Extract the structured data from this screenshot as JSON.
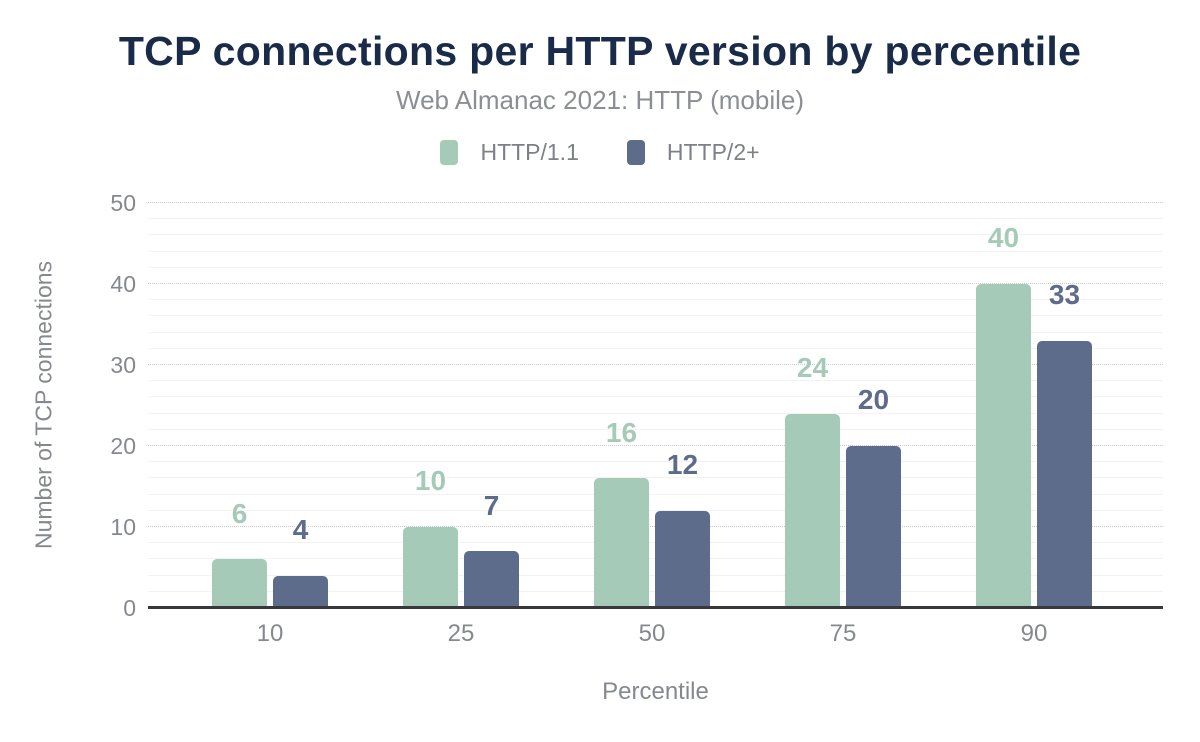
{
  "chart_data": {
    "type": "bar",
    "title": "TCP connections per HTTP version by percentile",
    "subtitle": "Web Almanac 2021: HTTP (mobile)",
    "xlabel": "Percentile",
    "ylabel": "Number of TCP connections",
    "categories": [
      "10",
      "25",
      "50",
      "75",
      "90"
    ],
    "series": [
      {
        "name": "HTTP/1.1",
        "color": "#a6cab8",
        "values": [
          6,
          10,
          16,
          24,
          40
        ]
      },
      {
        "name": "HTTP/2+",
        "color": "#5d6c8a",
        "values": [
          4,
          7,
          12,
          20,
          33
        ]
      }
    ],
    "ylim": [
      0,
      50
    ],
    "yticks": [
      0,
      10,
      20,
      30,
      40,
      50
    ],
    "y_minor_step": 2,
    "legend_position": "top",
    "grid": {
      "major": "dotted",
      "minor": "solid"
    },
    "data_labels": "above bars, colored per series"
  },
  "colors": {
    "title": "#1a2b49",
    "subtitle": "#8b8e94",
    "axis_text": "#85888f",
    "axis_line": "#37383c",
    "grid_major": "#c9cacc",
    "grid_minor": "#f2f2f4",
    "background": "#ffffff"
  }
}
